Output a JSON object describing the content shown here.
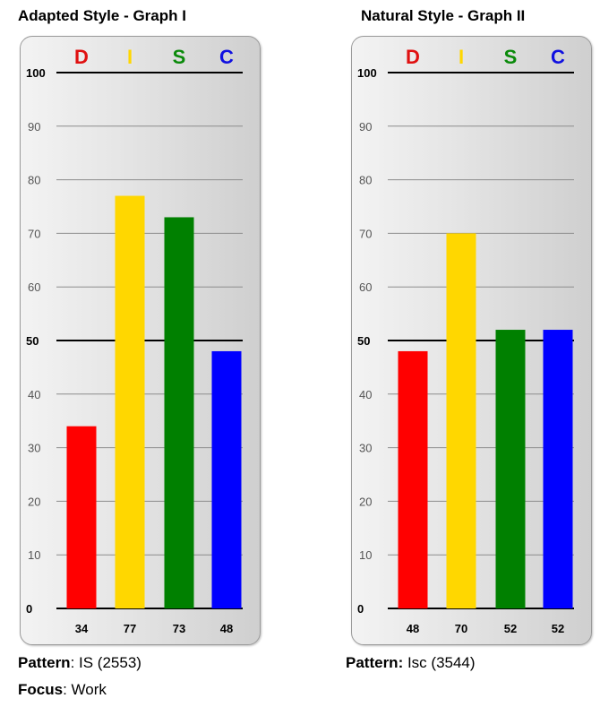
{
  "chart_data": [
    {
      "type": "bar",
      "title": "Adapted Style - Graph I",
      "categories": [
        "D",
        "I",
        "S",
        "C"
      ],
      "category_colors": [
        "#e01010",
        "#ffd700",
        "#0a8a0a",
        "#1010e0"
      ],
      "values": [
        34,
        77,
        73,
        48
      ],
      "value_labels": [
        "34",
        "77",
        "73",
        "48"
      ],
      "ylim": [
        0,
        100
      ],
      "yticks": [
        "0",
        "10",
        "20",
        "30",
        "40",
        "50",
        "60",
        "70",
        "80",
        "90",
        "100"
      ],
      "highlighted_gridlines": [
        0,
        50,
        100
      ],
      "grid": true,
      "bar_colors": [
        "#ff0000",
        "#ffd700",
        "#008000",
        "#0000ff"
      ]
    },
    {
      "type": "bar",
      "title": "Natural Style - Graph II",
      "categories": [
        "D",
        "I",
        "S",
        "C"
      ],
      "category_colors": [
        "#e01010",
        "#ffd700",
        "#0a8a0a",
        "#1010e0"
      ],
      "values": [
        48,
        70,
        52,
        52
      ],
      "value_labels": [
        "48",
        "70",
        "52",
        "52"
      ],
      "ylim": [
        0,
        100
      ],
      "yticks": [
        "0",
        "10",
        "20",
        "30",
        "40",
        "50",
        "60",
        "70",
        "80",
        "90",
        "100"
      ],
      "highlighted_gridlines": [
        0,
        50,
        100
      ],
      "grid": true,
      "bar_colors": [
        "#ff0000",
        "#ffd700",
        "#008000",
        "#0000ff"
      ]
    }
  ],
  "graph1_info": {
    "pattern_label": "Pattern",
    "pattern_value": ": IS (2553)",
    "focus_label": "Focus",
    "focus_value": ": Work"
  },
  "graph2_info": {
    "pattern_label": "Pattern:",
    "pattern_value": " Isc (3544)"
  }
}
